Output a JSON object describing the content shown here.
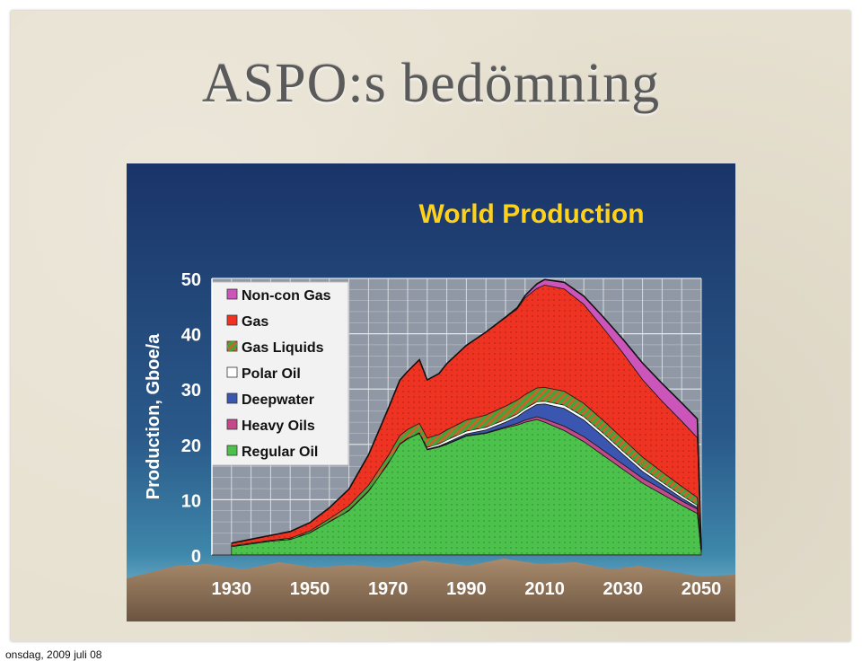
{
  "slide": {
    "title": "ASPO:s bedömning",
    "footer": "onsdag, 2009 juli 08"
  },
  "chart_data": {
    "type": "area",
    "stacked": true,
    "title": "World Production",
    "ylabel": "Production, Gboe/a",
    "xlabel": "",
    "xlim": [
      1925,
      2050
    ],
    "ylim": [
      0,
      50
    ],
    "x_ticks": [
      1930,
      1950,
      1970,
      1990,
      2010,
      2030,
      2050
    ],
    "y_ticks": [
      0,
      10,
      20,
      30,
      40,
      50
    ],
    "grid": true,
    "legend_position": "top-left",
    "colors": {
      "regular_oil": "#4cc24c",
      "heavy_oils": "#c24a8a",
      "deepwater": "#3a56b0",
      "polar_oil": "#ffffff",
      "gas_liquids": "#c9652a",
      "gas": "#ee3322",
      "non_con_gas": "#cc55bb"
    },
    "x": [
      1930,
      1935,
      1940,
      1945,
      1950,
      1955,
      1960,
      1965,
      1970,
      1973,
      1975,
      1978,
      1980,
      1983,
      1985,
      1990,
      1995,
      2000,
      2003,
      2005,
      2008,
      2010,
      2015,
      2020,
      2025,
      2030,
      2035,
      2040,
      2045,
      2049,
      2050
    ],
    "series": [
      {
        "name": "Regular Oil",
        "key": "regular_oil",
        "values": [
          1.5,
          2.0,
          2.5,
          2.8,
          4.0,
          6.0,
          8.0,
          11.5,
          16.5,
          20.0,
          21.0,
          22.0,
          19.0,
          19.5,
          20.0,
          21.5,
          22.0,
          23.0,
          23.5,
          24.0,
          24.5,
          24.0,
          22.5,
          20.5,
          18.0,
          15.5,
          13.0,
          11.0,
          9.0,
          7.5,
          0.5
        ]
      },
      {
        "name": "Heavy Oils",
        "key": "heavy_oils",
        "values": [
          0.05,
          0.05,
          0.05,
          0.05,
          0.05,
          0.05,
          0.1,
          0.1,
          0.1,
          0.1,
          0.1,
          0.1,
          0.1,
          0.1,
          0.1,
          0.1,
          0.1,
          0.2,
          0.3,
          0.4,
          0.5,
          0.6,
          0.8,
          0.9,
          0.9,
          0.9,
          0.9,
          0.9,
          0.8,
          0.8,
          0.1
        ]
      },
      {
        "name": "Deepwater",
        "key": "deepwater",
        "values": [
          0,
          0,
          0,
          0,
          0,
          0,
          0,
          0,
          0,
          0,
          0,
          0,
          0.05,
          0.1,
          0.2,
          0.3,
          0.5,
          0.8,
          1.2,
          1.6,
          2.2,
          2.7,
          3.2,
          3.0,
          2.5,
          1.8,
          1.2,
          0.8,
          0.5,
          0.3,
          0.05
        ]
      },
      {
        "name": "Polar Oil",
        "key": "polar_oil",
        "values": [
          0,
          0,
          0,
          0,
          0,
          0,
          0,
          0,
          0,
          0,
          0,
          0,
          0.3,
          0.4,
          0.5,
          0.5,
          0.5,
          0.5,
          0.5,
          0.5,
          0.5,
          0.5,
          0.6,
          0.6,
          0.6,
          0.6,
          0.6,
          0.5,
          0.5,
          0.4,
          0.05
        ]
      },
      {
        "name": "Gas Liquids",
        "key": "gas_liquids",
        "values": [
          0.1,
          0.1,
          0.1,
          0.2,
          0.3,
          0.5,
          0.8,
          1.0,
          1.3,
          1.5,
          1.6,
          1.7,
          1.7,
          1.7,
          1.8,
          2.0,
          2.2,
          2.4,
          2.5,
          2.5,
          2.5,
          2.5,
          2.5,
          2.4,
          2.3,
          2.2,
          2.0,
          1.8,
          1.6,
          1.4,
          0.1
        ]
      },
      {
        "name": "Gas",
        "key": "gas",
        "values": [
          0.5,
          0.7,
          0.9,
          1.2,
          1.5,
          2.0,
          3.0,
          5.5,
          8.5,
          10.0,
          10.5,
          11.5,
          10.5,
          11.0,
          12.0,
          13.5,
          15.0,
          16.0,
          16.5,
          17.5,
          18.0,
          18.5,
          18.5,
          17.9,
          16.7,
          15.5,
          14.0,
          12.8,
          11.8,
          10.8,
          0.2
        ]
      },
      {
        "name": "Non-con Gas",
        "key": "non_con_gas",
        "values": [
          0,
          0,
          0,
          0,
          0,
          0,
          0,
          0,
          0,
          0,
          0,
          0,
          0,
          0,
          0,
          0,
          0,
          0.1,
          0.2,
          0.4,
          0.8,
          1.0,
          1.2,
          1.5,
          2.0,
          2.5,
          3.0,
          3.2,
          3.3,
          3.4,
          0.05
        ]
      }
    ]
  }
}
